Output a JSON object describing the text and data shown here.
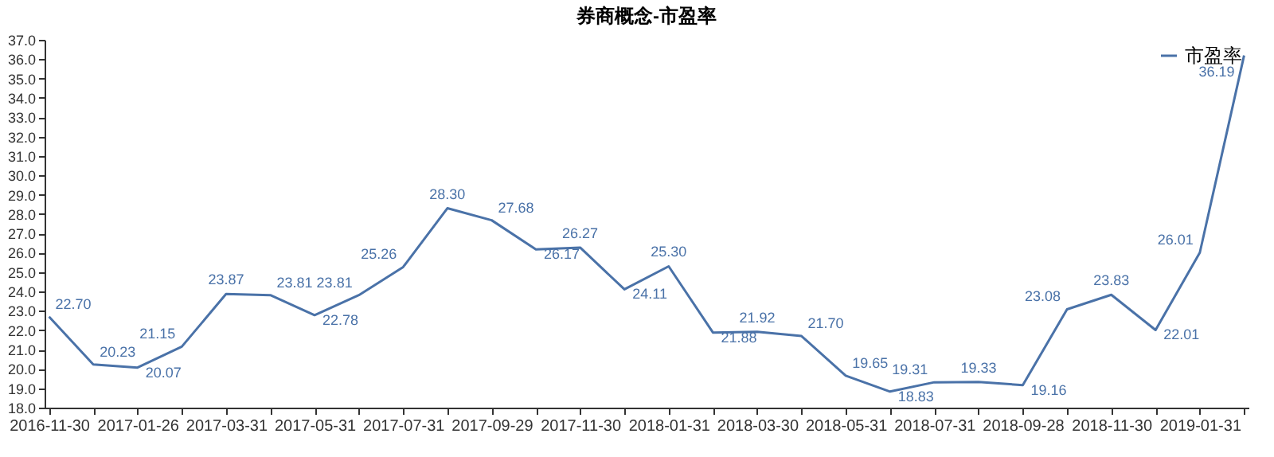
{
  "chart_data": {
    "type": "line",
    "title": "券商概念-市盈率",
    "categories": [
      "2016-11-30",
      null,
      "2017-01-26",
      null,
      "2017-03-31",
      null,
      "2017-05-31",
      null,
      "2017-07-31",
      null,
      "2017-09-29",
      null,
      "2017-11-30",
      null,
      "2018-01-31",
      null,
      "2018-03-30",
      null,
      "2018-05-31",
      null,
      "2018-07-31",
      null,
      "2018-09-28",
      null,
      "2018-11-30",
      null,
      "2019-01-31",
      null
    ],
    "series": [
      {
        "name": "市盈率",
        "color": "#4a72a8",
        "values": [
          22.7,
          20.23,
          20.07,
          21.15,
          23.87,
          23.81,
          22.78,
          23.81,
          25.26,
          28.3,
          27.68,
          26.17,
          26.27,
          24.11,
          25.3,
          21.88,
          21.92,
          21.7,
          19.65,
          18.83,
          19.31,
          19.33,
          19.16,
          23.08,
          23.83,
          22.01,
          26.01,
          36.19
        ]
      }
    ],
    "ylim": [
      18,
      37
    ],
    "yticks": [
      {
        "value": 18,
        "label": "18.0"
      },
      {
        "value": 19,
        "label": "19.0"
      },
      {
        "value": 20,
        "label": "20.0"
      },
      {
        "value": 21,
        "label": "21.0"
      },
      {
        "value": 22,
        "label": "22.0"
      },
      {
        "value": 23,
        "label": "23.0"
      },
      {
        "value": 24,
        "label": "24.0"
      },
      {
        "value": 25,
        "label": "25.0"
      },
      {
        "value": 26,
        "label": "26.0"
      },
      {
        "value": 27,
        "label": "27.0"
      },
      {
        "value": 28,
        "label": "28.0"
      },
      {
        "value": 29,
        "label": "29.0"
      },
      {
        "value": 30,
        "label": "30.0"
      },
      {
        "value": 31,
        "label": "31.0"
      },
      {
        "value": 32,
        "label": "32.0"
      },
      {
        "value": 33,
        "label": "33.0"
      },
      {
        "value": 34,
        "label": "34.0"
      },
      {
        "value": 35,
        "label": "35.0"
      },
      {
        "value": 36,
        "label": "36.0"
      },
      {
        "value": 37,
        "label": "37.0"
      }
    ],
    "grid": false,
    "legend": "top right",
    "marker": "none",
    "line_style": "solid",
    "value_labels": [
      "22.70",
      "20.23",
      "20.07",
      "21.15",
      "23.87",
      "23.81",
      "22.78",
      "23.81",
      "25.26",
      "28.30",
      "27.68",
      "26.17",
      "26.27",
      "24.11",
      "25.30",
      "21.88",
      "21.92",
      "21.70",
      "19.65",
      "18.83",
      "19.31",
      "19.33",
      "19.16",
      "23.08",
      "23.83",
      "22.01",
      "26.01",
      "36.19"
    ]
  }
}
